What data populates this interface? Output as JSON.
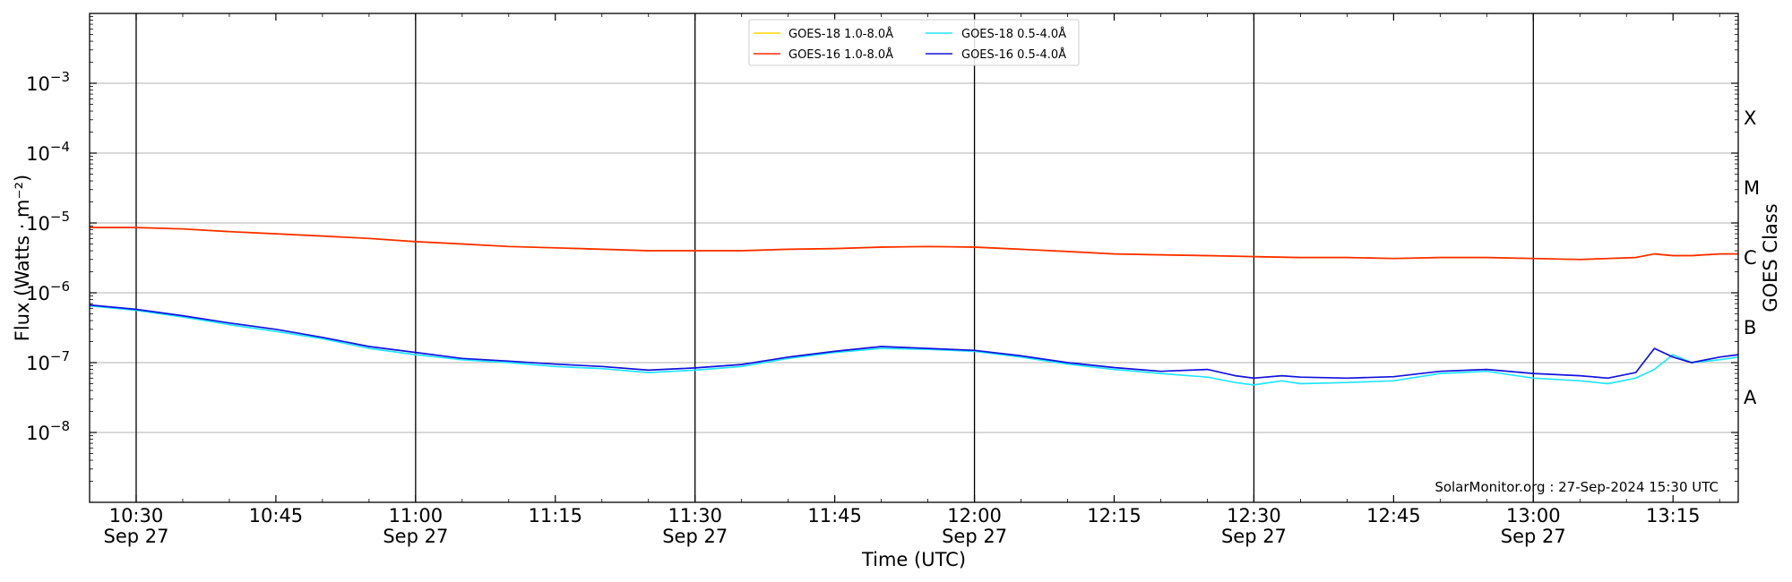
{
  "chart_data": {
    "type": "line",
    "xlabel": "Time (UTC)",
    "ylabel": "Flux (Watts · m⁻²)",
    "right_axis_label": "GOES Class",
    "y_scale": "log",
    "ylim": [
      1e-09,
      0.01
    ],
    "xlim": [
      "10:25",
      "13:22"
    ],
    "grid": "horizontal at decades, vertical at half-hours",
    "legend_position": "top-center",
    "watermark": "SolarMonitor.org : 27-Sep-2024 15:30 UTC",
    "x_ticks": [
      {
        "t": "10:30",
        "label": "10:30",
        "date": "Sep 27"
      },
      {
        "t": "10:45",
        "label": "10:45",
        "date": ""
      },
      {
        "t": "11:00",
        "label": "11:00",
        "date": "Sep 27"
      },
      {
        "t": "11:15",
        "label": "11:15",
        "date": ""
      },
      {
        "t": "11:30",
        "label": "11:30",
        "date": "Sep 27"
      },
      {
        "t": "11:45",
        "label": "11:45",
        "date": ""
      },
      {
        "t": "12:00",
        "label": "12:00",
        "date": "Sep 27"
      },
      {
        "t": "12:15",
        "label": "12:15",
        "date": ""
      },
      {
        "t": "12:30",
        "label": "12:30",
        "date": "Sep 27"
      },
      {
        "t": "12:45",
        "label": "12:45",
        "date": ""
      },
      {
        "t": "13:00",
        "label": "13:00",
        "date": "Sep 27"
      },
      {
        "t": "13:15",
        "label": "13:15",
        "date": ""
      }
    ],
    "y_ticks": [
      {
        "value": 1e-08,
        "label": "10",
        "exp": "−8"
      },
      {
        "value": 1e-07,
        "label": "10",
        "exp": "−7"
      },
      {
        "value": 1e-06,
        "label": "10",
        "exp": "−6"
      },
      {
        "value": 1e-05,
        "label": "10",
        "exp": "−5"
      },
      {
        "value": 0.0001,
        "label": "10",
        "exp": "−4"
      },
      {
        "value": 0.001,
        "label": "10",
        "exp": "−3"
      }
    ],
    "goes_classes": [
      {
        "label": "A",
        "value": 1e-08
      },
      {
        "label": "B",
        "value": 1e-07
      },
      {
        "label": "C",
        "value": 1e-06
      },
      {
        "label": "M",
        "value": 1e-05
      },
      {
        "label": "X",
        "value": 0.0001
      }
    ],
    "series": [
      {
        "name": "GOES-18 1.0-8.0Å",
        "color": "#ffd700",
        "x": [
          "10:25",
          "10:30",
          "10:35",
          "10:40",
          "10:45",
          "10:50",
          "10:55",
          "11:00",
          "11:05",
          "11:10",
          "11:15",
          "11:20",
          "11:25",
          "11:30",
          "11:35",
          "11:40",
          "11:45",
          "11:50",
          "11:55",
          "12:00",
          "12:05",
          "12:10",
          "12:15",
          "12:20",
          "12:25",
          "12:30",
          "12:35",
          "12:40",
          "12:45",
          "12:50",
          "12:55",
          "13:00",
          "13:05",
          "13:08",
          "13:11",
          "13:13",
          "13:15",
          "13:17",
          "13:20",
          "13:22"
        ],
        "y": [
          8.6e-06,
          8.6e-06,
          8.2e-06,
          7.5e-06,
          7e-06,
          6.5e-06,
          6e-06,
          5.4e-06,
          5e-06,
          4.6e-06,
          4.4e-06,
          4.2e-06,
          4e-06,
          4e-06,
          4e-06,
          4.2e-06,
          4.3e-06,
          4.5e-06,
          4.6e-06,
          4.5e-06,
          4.2e-06,
          3.9e-06,
          3.6e-06,
          3.5e-06,
          3.4e-06,
          3.3e-06,
          3.2e-06,
          3.2e-06,
          3.1e-06,
          3.2e-06,
          3.2e-06,
          3.1e-06,
          3e-06,
          3.1e-06,
          3.2e-06,
          3.6e-06,
          3.4e-06,
          3.4e-06,
          3.6e-06,
          3.6e-06
        ]
      },
      {
        "name": "GOES-16 1.0-8.0Å",
        "color": "#ff2a00",
        "x": [
          "10:25",
          "10:30",
          "10:35",
          "10:40",
          "10:45",
          "10:50",
          "10:55",
          "11:00",
          "11:05",
          "11:10",
          "11:15",
          "11:20",
          "11:25",
          "11:30",
          "11:35",
          "11:40",
          "11:45",
          "11:50",
          "11:55",
          "12:00",
          "12:05",
          "12:10",
          "12:15",
          "12:20",
          "12:25",
          "12:30",
          "12:35",
          "12:40",
          "12:45",
          "12:50",
          "12:55",
          "13:00",
          "13:05",
          "13:08",
          "13:11",
          "13:13",
          "13:15",
          "13:17",
          "13:20",
          "13:22"
        ],
        "y": [
          8.6e-06,
          8.6e-06,
          8.2e-06,
          7.5e-06,
          7e-06,
          6.5e-06,
          6e-06,
          5.4e-06,
          5e-06,
          4.6e-06,
          4.4e-06,
          4.2e-06,
          4e-06,
          4e-06,
          4e-06,
          4.2e-06,
          4.3e-06,
          4.5e-06,
          4.6e-06,
          4.5e-06,
          4.2e-06,
          3.9e-06,
          3.6e-06,
          3.5e-06,
          3.4e-06,
          3.3e-06,
          3.2e-06,
          3.2e-06,
          3.1e-06,
          3.2e-06,
          3.2e-06,
          3.1e-06,
          3e-06,
          3.1e-06,
          3.2e-06,
          3.6e-06,
          3.4e-06,
          3.4e-06,
          3.6e-06,
          3.6e-06
        ]
      },
      {
        "name": "GOES-18 0.5-4.0Å",
        "color": "#22e5ff",
        "x": [
          "10:25",
          "10:30",
          "10:35",
          "10:40",
          "10:45",
          "10:50",
          "10:55",
          "11:00",
          "11:05",
          "11:10",
          "11:15",
          "11:20",
          "11:25",
          "11:30",
          "11:35",
          "11:40",
          "11:45",
          "11:50",
          "11:55",
          "12:00",
          "12:05",
          "12:10",
          "12:15",
          "12:20",
          "12:25",
          "12:28",
          "12:30",
          "12:33",
          "12:35",
          "12:40",
          "12:45",
          "12:50",
          "12:55",
          "13:00",
          "13:05",
          "13:08",
          "13:11",
          "13:13",
          "13:15",
          "13:17",
          "13:20",
          "13:22"
        ],
        "y": [
          6.5e-07,
          5.6e-07,
          4.5e-07,
          3.5e-07,
          2.8e-07,
          2.2e-07,
          1.6e-07,
          1.3e-07,
          1.1e-07,
          1e-07,
          8.8e-08,
          8.2e-08,
          7.2e-08,
          7.8e-08,
          8.8e-08,
          1.15e-07,
          1.4e-07,
          1.6e-07,
          1.55e-07,
          1.45e-07,
          1.2e-07,
          9.5e-08,
          8e-08,
          7e-08,
          6.2e-08,
          5.2e-08,
          4.8e-08,
          5.5e-08,
          5e-08,
          5.2e-08,
          5.5e-08,
          7e-08,
          7.5e-08,
          6e-08,
          5.5e-08,
          5e-08,
          6e-08,
          8e-08,
          1.3e-07,
          1e-07,
          1.1e-07,
          1.2e-07
        ]
      },
      {
        "name": "GOES-16 0.5-4.0Å",
        "color": "#1212dd",
        "x": [
          "10:25",
          "10:30",
          "10:35",
          "10:40",
          "10:45",
          "10:50",
          "10:55",
          "11:00",
          "11:05",
          "11:10",
          "11:15",
          "11:20",
          "11:25",
          "11:30",
          "11:35",
          "11:40",
          "11:45",
          "11:50",
          "11:55",
          "12:00",
          "12:05",
          "12:10",
          "12:15",
          "12:20",
          "12:25",
          "12:28",
          "12:30",
          "12:33",
          "12:35",
          "12:40",
          "12:45",
          "12:50",
          "12:55",
          "13:00",
          "13:05",
          "13:08",
          "13:11",
          "13:13",
          "13:15",
          "13:17",
          "13:20",
          "13:22"
        ],
        "y": [
          6.7e-07,
          5.8e-07,
          4.7e-07,
          3.7e-07,
          3e-07,
          2.3e-07,
          1.7e-07,
          1.4e-07,
          1.15e-07,
          1.05e-07,
          9.5e-08,
          8.8e-08,
          7.8e-08,
          8.4e-08,
          9.4e-08,
          1.2e-07,
          1.45e-07,
          1.7e-07,
          1.6e-07,
          1.5e-07,
          1.25e-07,
          1e-07,
          8.5e-08,
          7.5e-08,
          8e-08,
          6.5e-08,
          6e-08,
          6.5e-08,
          6.2e-08,
          6e-08,
          6.3e-08,
          7.5e-08,
          8e-08,
          7e-08,
          6.5e-08,
          6e-08,
          7.2e-08,
          1.6e-07,
          1.2e-07,
          1e-07,
          1.2e-07,
          1.3e-07
        ]
      }
    ]
  }
}
